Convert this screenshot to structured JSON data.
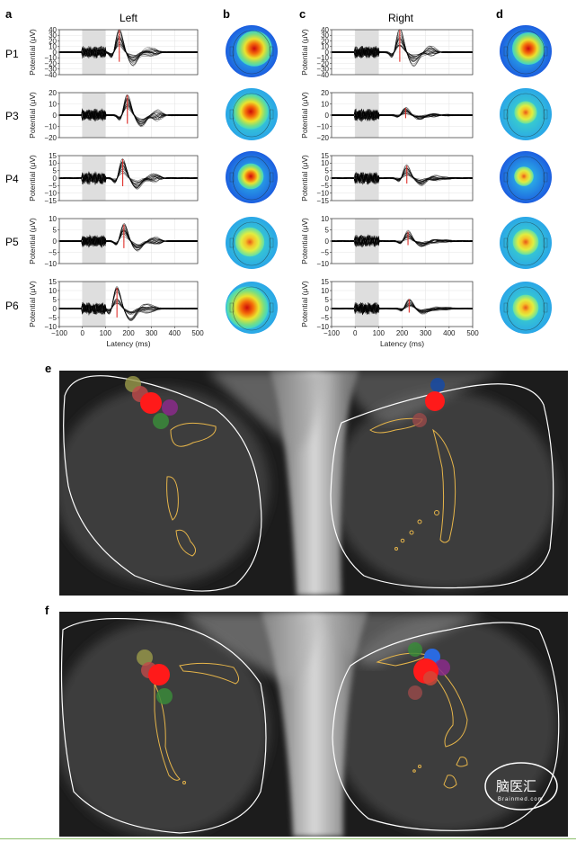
{
  "panels": {
    "a": "a",
    "b": "b",
    "c": "c",
    "d": "d",
    "e": "e",
    "f": "f"
  },
  "columns": {
    "left": "Left",
    "right": "Right"
  },
  "x_axis": {
    "label": "Latency (ms)",
    "ticks": [
      "−100",
      "0",
      "100",
      "200",
      "300",
      "400",
      "500"
    ]
  },
  "y_label": "Potential (μV)",
  "watermark": {
    "text": "脑医汇",
    "sub": "Brainmed.com"
  },
  "colors": {
    "trace": "#000000",
    "highlight": "#dddddd",
    "peak": "#e0302a",
    "contour": "#e6b54a",
    "outline": "#ffffff"
  },
  "chart_data": [
    {
      "type": "line",
      "participant": "P1",
      "side": "left",
      "ylabel": "Potential (μV)",
      "xlabel": "",
      "xlim": [
        -100,
        500
      ],
      "ylim": [
        -40,
        40
      ],
      "yticks": [
        -40,
        -30,
        -20,
        -10,
        0,
        10,
        20,
        30,
        40
      ],
      "shaded": [
        0,
        100
      ],
      "peak_latency": 160,
      "peak_amplitude": 38
    },
    {
      "type": "line",
      "participant": "P1",
      "side": "right",
      "ylabel": "Potential (μV)",
      "xlabel": "",
      "xlim": [
        -100,
        500
      ],
      "ylim": [
        -40,
        40
      ],
      "yticks": [
        -40,
        -30,
        -20,
        -10,
        0,
        10,
        20,
        30,
        40
      ],
      "shaded": [
        0,
        100
      ],
      "peak_latency": 190,
      "peak_amplitude": 38
    },
    {
      "type": "line",
      "participant": "P3",
      "side": "left",
      "ylabel": "Potential (μV)",
      "xlabel": "",
      "xlim": [
        -100,
        500
      ],
      "ylim": [
        -20,
        20
      ],
      "yticks": [
        -20,
        -10,
        0,
        10,
        20
      ],
      "shaded": [
        0,
        100
      ],
      "peak_latency": 195,
      "peak_amplitude": 17
    },
    {
      "type": "line",
      "participant": "P3",
      "side": "right",
      "ylabel": "Potential (μV)",
      "xlabel": "",
      "xlim": [
        -100,
        500
      ],
      "ylim": [
        -20,
        20
      ],
      "yticks": [
        -20,
        -10,
        0,
        10,
        20
      ],
      "shaded": [
        0,
        100
      ],
      "peak_latency": 215,
      "peak_amplitude": 6
    },
    {
      "type": "line",
      "participant": "P4",
      "side": "left",
      "ylabel": "Potential (μV)",
      "xlabel": "",
      "xlim": [
        -100,
        500
      ],
      "ylim": [
        -15,
        15
      ],
      "yticks": [
        -15,
        -10,
        -5,
        0,
        5,
        10,
        15
      ],
      "shaded": [
        0,
        100
      ],
      "peak_latency": 175,
      "peak_amplitude": 12
    },
    {
      "type": "line",
      "participant": "P4",
      "side": "right",
      "ylabel": "Potential (μV)",
      "xlabel": "",
      "xlim": [
        -100,
        500
      ],
      "ylim": [
        -15,
        15
      ],
      "yticks": [
        -15,
        -10,
        -5,
        0,
        5,
        10,
        15
      ],
      "shaded": [
        0,
        100
      ],
      "peak_latency": 220,
      "peak_amplitude": 8
    },
    {
      "type": "line",
      "participant": "P5",
      "side": "left",
      "ylabel": "Potential (μV)",
      "xlabel": "",
      "xlim": [
        -100,
        500
      ],
      "ylim": [
        -10,
        10
      ],
      "yticks": [
        -10,
        -5,
        0,
        5,
        10
      ],
      "shaded": [
        0,
        100
      ],
      "peak_latency": 180,
      "peak_amplitude": 7
    },
    {
      "type": "line",
      "participant": "P5",
      "side": "right",
      "ylabel": "Potential (μV)",
      "xlabel": "",
      "xlim": [
        -100,
        500
      ],
      "ylim": [
        -10,
        10
      ],
      "yticks": [
        -10,
        -5,
        0,
        5,
        10
      ],
      "shaded": [
        0,
        100
      ],
      "peak_latency": 225,
      "peak_amplitude": 4
    },
    {
      "type": "line",
      "participant": "P6",
      "side": "left",
      "ylabel": "Potential (μV)",
      "xlabel": "Latency (ms)",
      "xlim": [
        -100,
        500
      ],
      "ylim": [
        -10,
        15
      ],
      "yticks": [
        -10,
        -5,
        0,
        5,
        10,
        15
      ],
      "shaded": [
        0,
        100
      ],
      "peak_latency": 150,
      "peak_amplitude": 11
    },
    {
      "type": "line",
      "participant": "P6",
      "side": "right",
      "ylabel": "Potential (μV)",
      "xlabel": "Latency (ms)",
      "xlim": [
        -100,
        500
      ],
      "ylim": [
        -10,
        15
      ],
      "yticks": [
        -10,
        -5,
        0,
        5,
        10,
        15
      ],
      "shaded": [
        0,
        100
      ],
      "peak_latency": 230,
      "peak_amplitude": 5
    }
  ]
}
